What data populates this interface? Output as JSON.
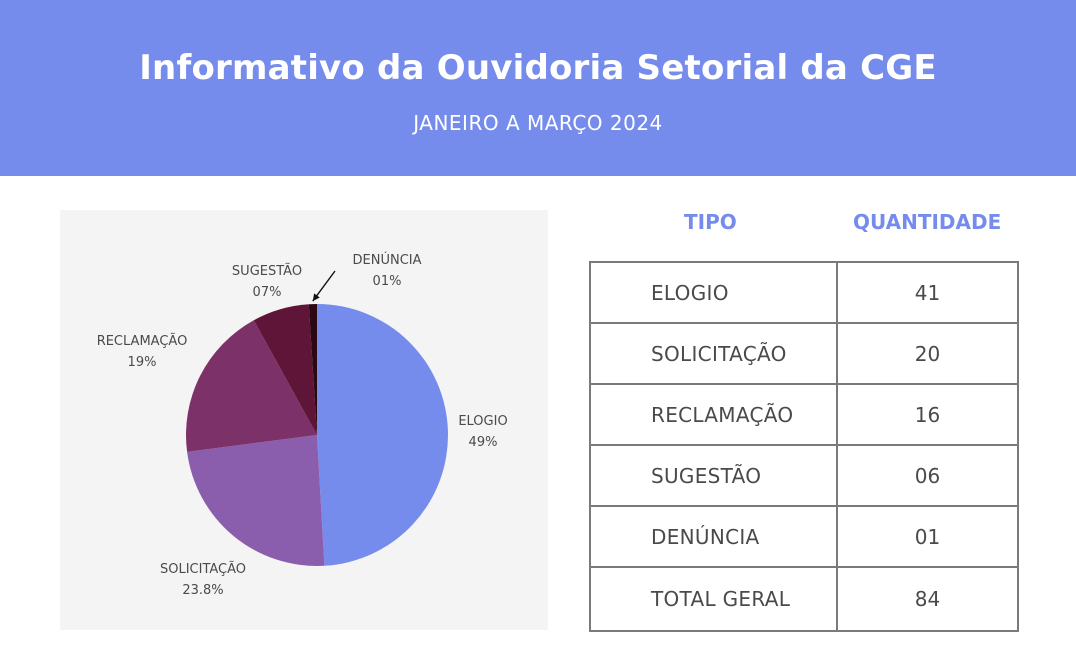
{
  "header": {
    "title": "Informativo da Ouvidoria Setorial da CGE",
    "subtitle": "JANEIRO A MARÇO 2024",
    "background_color": "#758cec"
  },
  "chart_data": {
    "type": "pie",
    "slices": [
      {
        "label": "ELOGIO",
        "pct_label": "49%",
        "value": 49,
        "color": "#758cec"
      },
      {
        "label": "SOLICITAÇÃO",
        "pct_label": "23.8%",
        "value": 23.8,
        "color": "#8b5ead"
      },
      {
        "label": "RECLAMAÇÃO",
        "pct_label": "19%",
        "value": 19,
        "color": "#7c3168"
      },
      {
        "label": "SUGESTÃO",
        "pct_label": "07%",
        "value": 7,
        "color": "#5f1538"
      },
      {
        "label": "DENÚNCIA",
        "pct_label": "01%",
        "value": 1,
        "color": "#2c0812"
      }
    ]
  },
  "table": {
    "headers": {
      "type": "TIPO",
      "quantity": "QUANTIDADE"
    },
    "rows": [
      {
        "type": "ELOGIO",
        "quantity": "41"
      },
      {
        "type": "SOLICITAÇÃO",
        "quantity": "20"
      },
      {
        "type": "RECLAMAÇÃO",
        "quantity": "16"
      },
      {
        "type": "SUGESTÃO",
        "quantity": "06"
      },
      {
        "type": "DENÚNCIA",
        "quantity": "01"
      },
      {
        "type": "TOTAL GERAL",
        "quantity": "84"
      }
    ]
  }
}
